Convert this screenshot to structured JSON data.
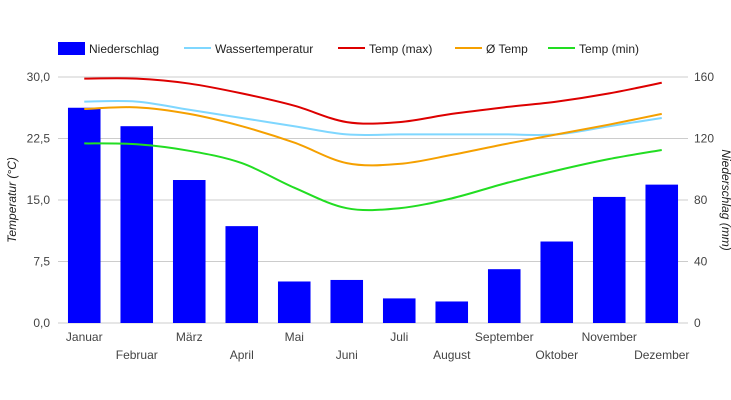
{
  "chart_data": {
    "type": "bar+line",
    "categories": [
      "Januar",
      "Februar",
      "März",
      "April",
      "Mai",
      "Juni",
      "Juli",
      "August",
      "September",
      "Oktober",
      "November",
      "Dezember"
    ],
    "bars": {
      "name": "Niederschlag",
      "color": "#0000ff",
      "axis": "right",
      "values": [
        140,
        128,
        93,
        63,
        27,
        28,
        16,
        14,
        35,
        53,
        82,
        90
      ]
    },
    "lines": [
      {
        "name": "Wassertemperatur",
        "color": "#7fd7ff",
        "values": [
          27.0,
          27.0,
          26.0,
          25.0,
          24.0,
          23.0,
          23.0,
          23.0,
          23.0,
          23.0,
          24.0,
          25.0
        ]
      },
      {
        "name": "Temp (max)",
        "color": "#dd0000",
        "values": [
          29.8,
          29.8,
          29.2,
          28.0,
          26.5,
          24.5,
          24.5,
          25.5,
          26.3,
          27.0,
          28.0,
          29.3
        ]
      },
      {
        "name": "Ø Temp",
        "color": "#f5a000",
        "values": [
          26.1,
          26.3,
          25.5,
          24.0,
          22.0,
          19.5,
          19.4,
          20.5,
          21.8,
          23.0,
          24.2,
          25.5
        ]
      },
      {
        "name": "Temp (min)",
        "color": "#22dd22",
        "values": [
          21.9,
          21.8,
          21.0,
          19.5,
          16.5,
          14.0,
          14.0,
          15.2,
          17.0,
          18.6,
          20.0,
          21.1
        ]
      }
    ],
    "legend_order": [
      "Niederschlag",
      "Wassertemperatur",
      "Temp (max)",
      "Ø Temp",
      "Temp (min)"
    ],
    "y_left": {
      "label": "Temperatur (°C)",
      "range": [
        0,
        30
      ],
      "ticks": [
        "0,0",
        "7,5",
        "15,0",
        "22,5",
        "30,0"
      ]
    },
    "y_right": {
      "label": "Niederschlag (mm)",
      "range": [
        0,
        160
      ],
      "ticks": [
        "0",
        "40",
        "80",
        "120",
        "160"
      ]
    },
    "grid": true,
    "legend_position": "top"
  }
}
